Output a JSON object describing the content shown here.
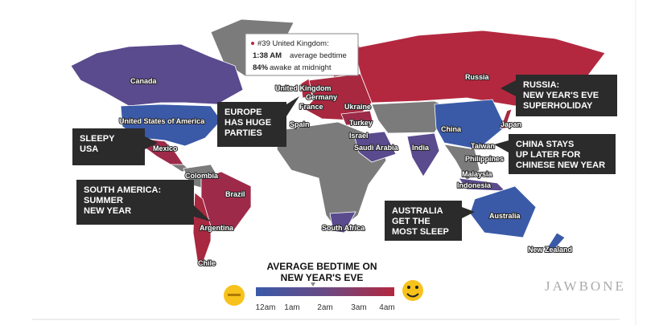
{
  "tooltip": {
    "rank": "#39 United Kingdom:",
    "bedtime_value": "1:38 AM",
    "bedtime_text": "average bedtime",
    "awake_value": "84%",
    "awake_text": "awake at midnight"
  },
  "callouts": [
    {
      "lines": [
        "SLEEPY",
        "USA"
      ]
    },
    {
      "lines": [
        "SOUTH AMERICA:",
        "SUMMER",
        "NEW YEAR"
      ]
    },
    {
      "lines": [
        "EUROPE",
        "HAS HUGE",
        "PARTIES"
      ]
    },
    {
      "lines": [
        "RUSSIA:",
        "NEW YEAR'S EVE",
        "SUPERHOLIDAY"
      ]
    },
    {
      "lines": [
        "CHINA STAYS",
        "UP LATER FOR",
        "CHINESE NEW YEAR"
      ]
    },
    {
      "lines": [
        "AUSTRALIA",
        "GET THE",
        "MOST SLEEP"
      ]
    }
  ],
  "country_labels": [
    "Canada",
    "United States of America",
    "Mexico",
    "Colombia",
    "Brazil",
    "Argentina",
    "Chile",
    "United Kingdom",
    "Germany",
    "France",
    "Spain",
    "Ukraine",
    "Turkey",
    "Israel",
    "Saudi Arabia",
    "India",
    "Russia",
    "China",
    "Japan",
    "Taiwan",
    "Philippines",
    "Malaysia",
    "Indonesia",
    "Australia",
    "New Zealand",
    "South Africa"
  ],
  "legend": {
    "title": [
      "AVERAGE BEDTIME ON",
      "NEW YEAR'S EVE"
    ],
    "ticks": [
      "12am",
      "1am",
      "2am",
      "3am",
      "4am"
    ]
  },
  "brand": "JAWBONE"
}
